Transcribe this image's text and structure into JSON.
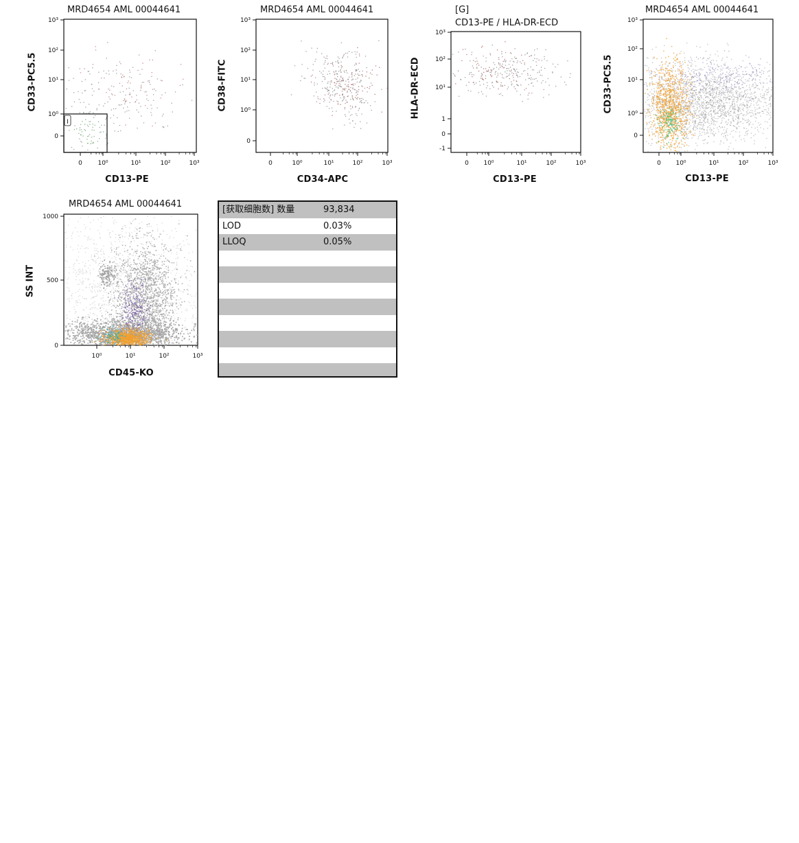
{
  "chart_data": [
    {
      "type": "scatter",
      "title": "MRD4654 AML 00044641",
      "xlabel": "CD13-PE",
      "ylabel": "CD33-PC5.5",
      "x_ticks": [
        "0",
        "10⁰",
        "10¹",
        "10²",
        "10³"
      ],
      "y_ticks": [
        "0",
        "10⁰",
        "10¹",
        "10²",
        "10³"
      ],
      "gate": {
        "label": "I",
        "x_range": [
          "min",
          "10⁰"
        ],
        "y_range": [
          "min",
          "10⁰"
        ]
      },
      "colors": [
        "#8a8a8a",
        "#c07070",
        "#70a070"
      ]
    },
    {
      "type": "scatter",
      "title": "MRD4654 AML 00044641",
      "xlabel": "CD34-APC",
      "ylabel": "CD38-FITC",
      "x_ticks": [
        "0",
        "10⁰",
        "10¹",
        "10²",
        "10³"
      ],
      "y_ticks": [
        "0",
        "10⁰",
        "10¹",
        "10²",
        "10³"
      ],
      "colors": [
        "#8a8a8a",
        "#b05a5a"
      ]
    },
    {
      "type": "scatter",
      "title": "[G]",
      "subtitle": "CD13-PE / HLA-DR-ECD",
      "xlabel": "CD13-PE",
      "ylabel": "HLA-DR-ECD",
      "x_ticks": [
        "0",
        "10⁰",
        "10¹",
        "10²",
        "10³"
      ],
      "y_ticks": [
        "-1",
        "0",
        "1",
        "10¹",
        "10²",
        "10³"
      ],
      "colors": [
        "#8a8a8a",
        "#b05a5a"
      ]
    },
    {
      "type": "scatter",
      "title": "MRD4654 AML 00044641",
      "xlabel": "CD13-PE",
      "ylabel": "CD33-PC5.5",
      "x_ticks": [
        "0",
        "10⁰",
        "10¹",
        "10²",
        "10³"
      ],
      "y_ticks": [
        "0",
        "10⁰",
        "10¹",
        "10²",
        "10³"
      ],
      "colors": [
        "#9a9a9a",
        "#f0a030",
        "#50c080",
        "#7a70b0"
      ]
    },
    {
      "type": "scatter",
      "title": "MRD4654 AML 00044641",
      "xlabel": "CD45-KO",
      "ylabel": "SS INT",
      "x_ticks": [
        "10⁰",
        "10¹",
        "10²",
        "10³"
      ],
      "y_ticks": [
        "0",
        "500",
        "1000"
      ],
      "colors": [
        "#a0a0a0",
        "#f0a030",
        "#6a4aa0",
        "#40b0b0"
      ]
    },
    {
      "type": "table",
      "rows": [
        {
          "label": "[获取细胞数] 数量",
          "value": "93,834"
        },
        {
          "label": "LOD",
          "value": "0.03%"
        },
        {
          "label": "LLOQ",
          "value": "0.05%"
        },
        {
          "label": "",
          "value": ""
        },
        {
          "label": "",
          "value": ""
        },
        {
          "label": "",
          "value": ""
        },
        {
          "label": "",
          "value": ""
        },
        {
          "label": "",
          "value": ""
        },
        {
          "label": "",
          "value": ""
        },
        {
          "label": "",
          "value": ""
        },
        {
          "label": "",
          "value": ""
        }
      ]
    }
  ]
}
